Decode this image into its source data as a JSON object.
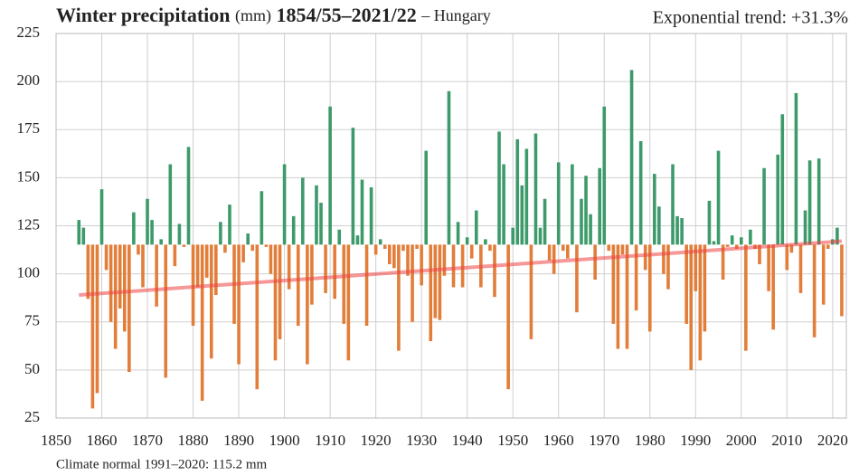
{
  "chart_data": {
    "type": "bar",
    "title": "Winter precipitation",
    "title_unit": "(mm)",
    "period": "1854/55–2021/22",
    "region": "– Hungary",
    "trend_label": "Exponential trend: +31.3%",
    "footnote": "Climate normal 1991–2020: 115.2 mm",
    "baseline": 115.2,
    "colors": {
      "above": "#3d9a6b",
      "below": "#e27d3a",
      "trend": "#ee4444",
      "grid": "#cfcfcf"
    },
    "grid": true,
    "xlim": [
      1850,
      2023
    ],
    "xticks": [
      1850,
      1860,
      1870,
      1880,
      1890,
      1900,
      1910,
      1920,
      1930,
      1940,
      1950,
      1960,
      1970,
      1980,
      1990,
      2000,
      2010,
      2020
    ],
    "ylim": [
      25,
      225
    ],
    "yticks": [
      25,
      50,
      75,
      100,
      125,
      150,
      175,
      200,
      225
    ],
    "x": [
      1855,
      1856,
      1857,
      1858,
      1859,
      1860,
      1861,
      1862,
      1863,
      1864,
      1865,
      1866,
      1867,
      1868,
      1869,
      1870,
      1871,
      1872,
      1873,
      1874,
      1875,
      1876,
      1877,
      1878,
      1879,
      1880,
      1881,
      1882,
      1883,
      1884,
      1885,
      1886,
      1887,
      1888,
      1889,
      1890,
      1891,
      1892,
      1893,
      1894,
      1895,
      1896,
      1897,
      1898,
      1899,
      1900,
      1901,
      1902,
      1903,
      1904,
      1905,
      1906,
      1907,
      1908,
      1909,
      1910,
      1911,
      1912,
      1913,
      1914,
      1915,
      1916,
      1917,
      1918,
      1919,
      1920,
      1921,
      1922,
      1923,
      1924,
      1925,
      1926,
      1927,
      1928,
      1929,
      1930,
      1931,
      1932,
      1933,
      1934,
      1935,
      1936,
      1937,
      1938,
      1939,
      1940,
      1941,
      1942,
      1943,
      1944,
      1945,
      1946,
      1947,
      1948,
      1949,
      1950,
      1951,
      1952,
      1953,
      1954,
      1955,
      1956,
      1957,
      1958,
      1959,
      1960,
      1961,
      1962,
      1963,
      1964,
      1965,
      1966,
      1967,
      1968,
      1969,
      1970,
      1971,
      1972,
      1973,
      1974,
      1975,
      1976,
      1977,
      1978,
      1979,
      1980,
      1981,
      1982,
      1983,
      1984,
      1985,
      1986,
      1987,
      1988,
      1989,
      1990,
      1991,
      1992,
      1993,
      1994,
      1995,
      1996,
      1997,
      1998,
      1999,
      2000,
      2001,
      2002,
      2003,
      2004,
      2005,
      2006,
      2007,
      2008,
      2009,
      2010,
      2011,
      2012,
      2013,
      2014,
      2015,
      2016,
      2017,
      2018,
      2019,
      2020,
      2021,
      2022
    ],
    "values": [
      128,
      124,
      87,
      30,
      38,
      144,
      102,
      75,
      61,
      82,
      70,
      49,
      132,
      110,
      93,
      139,
      128,
      83,
      118,
      46,
      157,
      104,
      126,
      114,
      166,
      73,
      93,
      34,
      98,
      56,
      89,
      127,
      111,
      136,
      74,
      53,
      106,
      121,
      112,
      40,
      143,
      114,
      100,
      55,
      66,
      157,
      92,
      130,
      73,
      150,
      53,
      84,
      146,
      137,
      90,
      187,
      87,
      123,
      74,
      55,
      176,
      120,
      149,
      73,
      145,
      110,
      118,
      113,
      105,
      103,
      60,
      112,
      99,
      75,
      113,
      94,
      164,
      65,
      77,
      76,
      99,
      195,
      93,
      127,
      93,
      119,
      108,
      133,
      93,
      118,
      112,
      88,
      174,
      157,
      40,
      124,
      170,
      146,
      165,
      66,
      173,
      124,
      139,
      107,
      100,
      158,
      112,
      108,
      157,
      80,
      139,
      151,
      131,
      97,
      155,
      187,
      112,
      74,
      61,
      110,
      61,
      206,
      81,
      169,
      102,
      70,
      152,
      135,
      100,
      92,
      157,
      130,
      129,
      74,
      50,
      91,
      55,
      70,
      138,
      117,
      164,
      97,
      114,
      120,
      113,
      119,
      60,
      123,
      113,
      105,
      155,
      91,
      71,
      162,
      183,
      102,
      111,
      194,
      90,
      133,
      159,
      67,
      160,
      84,
      113,
      118,
      124,
      78
    ],
    "trend": {
      "x": [
        1855,
        2022
      ],
      "values": [
        89,
        117
      ]
    }
  }
}
